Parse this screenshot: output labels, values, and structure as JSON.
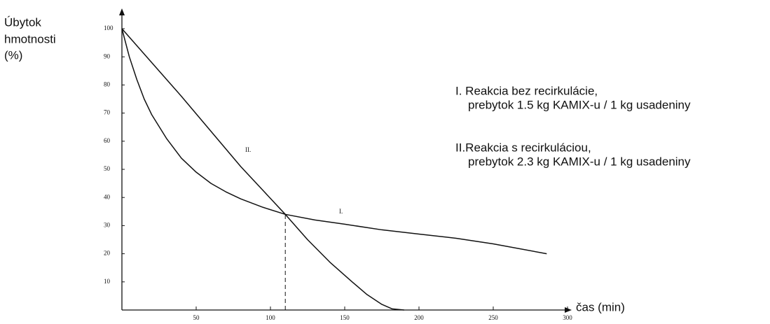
{
  "chart_data": {
    "type": "line",
    "y_label": [
      "Úbytok",
      "hmotnosti",
      "(%)"
    ],
    "x_label": "čas (min)",
    "xlim": [
      0,
      300
    ],
    "ylim": [
      0,
      100
    ],
    "xticks": [
      50,
      100,
      150,
      200,
      250,
      300
    ],
    "yticks": [
      10,
      20,
      30,
      40,
      50,
      60,
      70,
      80,
      90,
      100
    ],
    "series": [
      {
        "name": "I. Reakcia bez recirkulácie,",
        "note": "prebytok 1.5 kg KAMIX-u / 1 kg usadeniny",
        "label": "I.",
        "color": "#111111",
        "x": [
          0,
          5,
          10,
          15,
          20,
          30,
          40,
          50,
          60,
          70,
          80,
          95,
          110,
          130,
          150,
          175,
          200,
          225,
          250,
          286
        ],
        "values": [
          100,
          90,
          82,
          75,
          69.5,
          61,
          54,
          49,
          45,
          42,
          39.5,
          36.5,
          34,
          32,
          30.5,
          28.5,
          27,
          25.5,
          23.5,
          20
        ]
      },
      {
        "name": "II.Reakcia s recirkuláciou,",
        "note": "prebytok 2.3 kg KAMIX-u / 1 kg usadeniny",
        "label": "II.",
        "color": "#111111",
        "x": [
          0,
          20,
          40,
          60,
          80,
          95,
          110,
          125,
          140,
          155,
          165,
          175,
          182,
          190
        ],
        "values": [
          100,
          88,
          76,
          63.5,
          51,
          42.5,
          34,
          25,
          17,
          10,
          5.5,
          2,
          0.4,
          0
        ]
      }
    ],
    "reference_line": {
      "x": 110,
      "y": 34
    }
  }
}
